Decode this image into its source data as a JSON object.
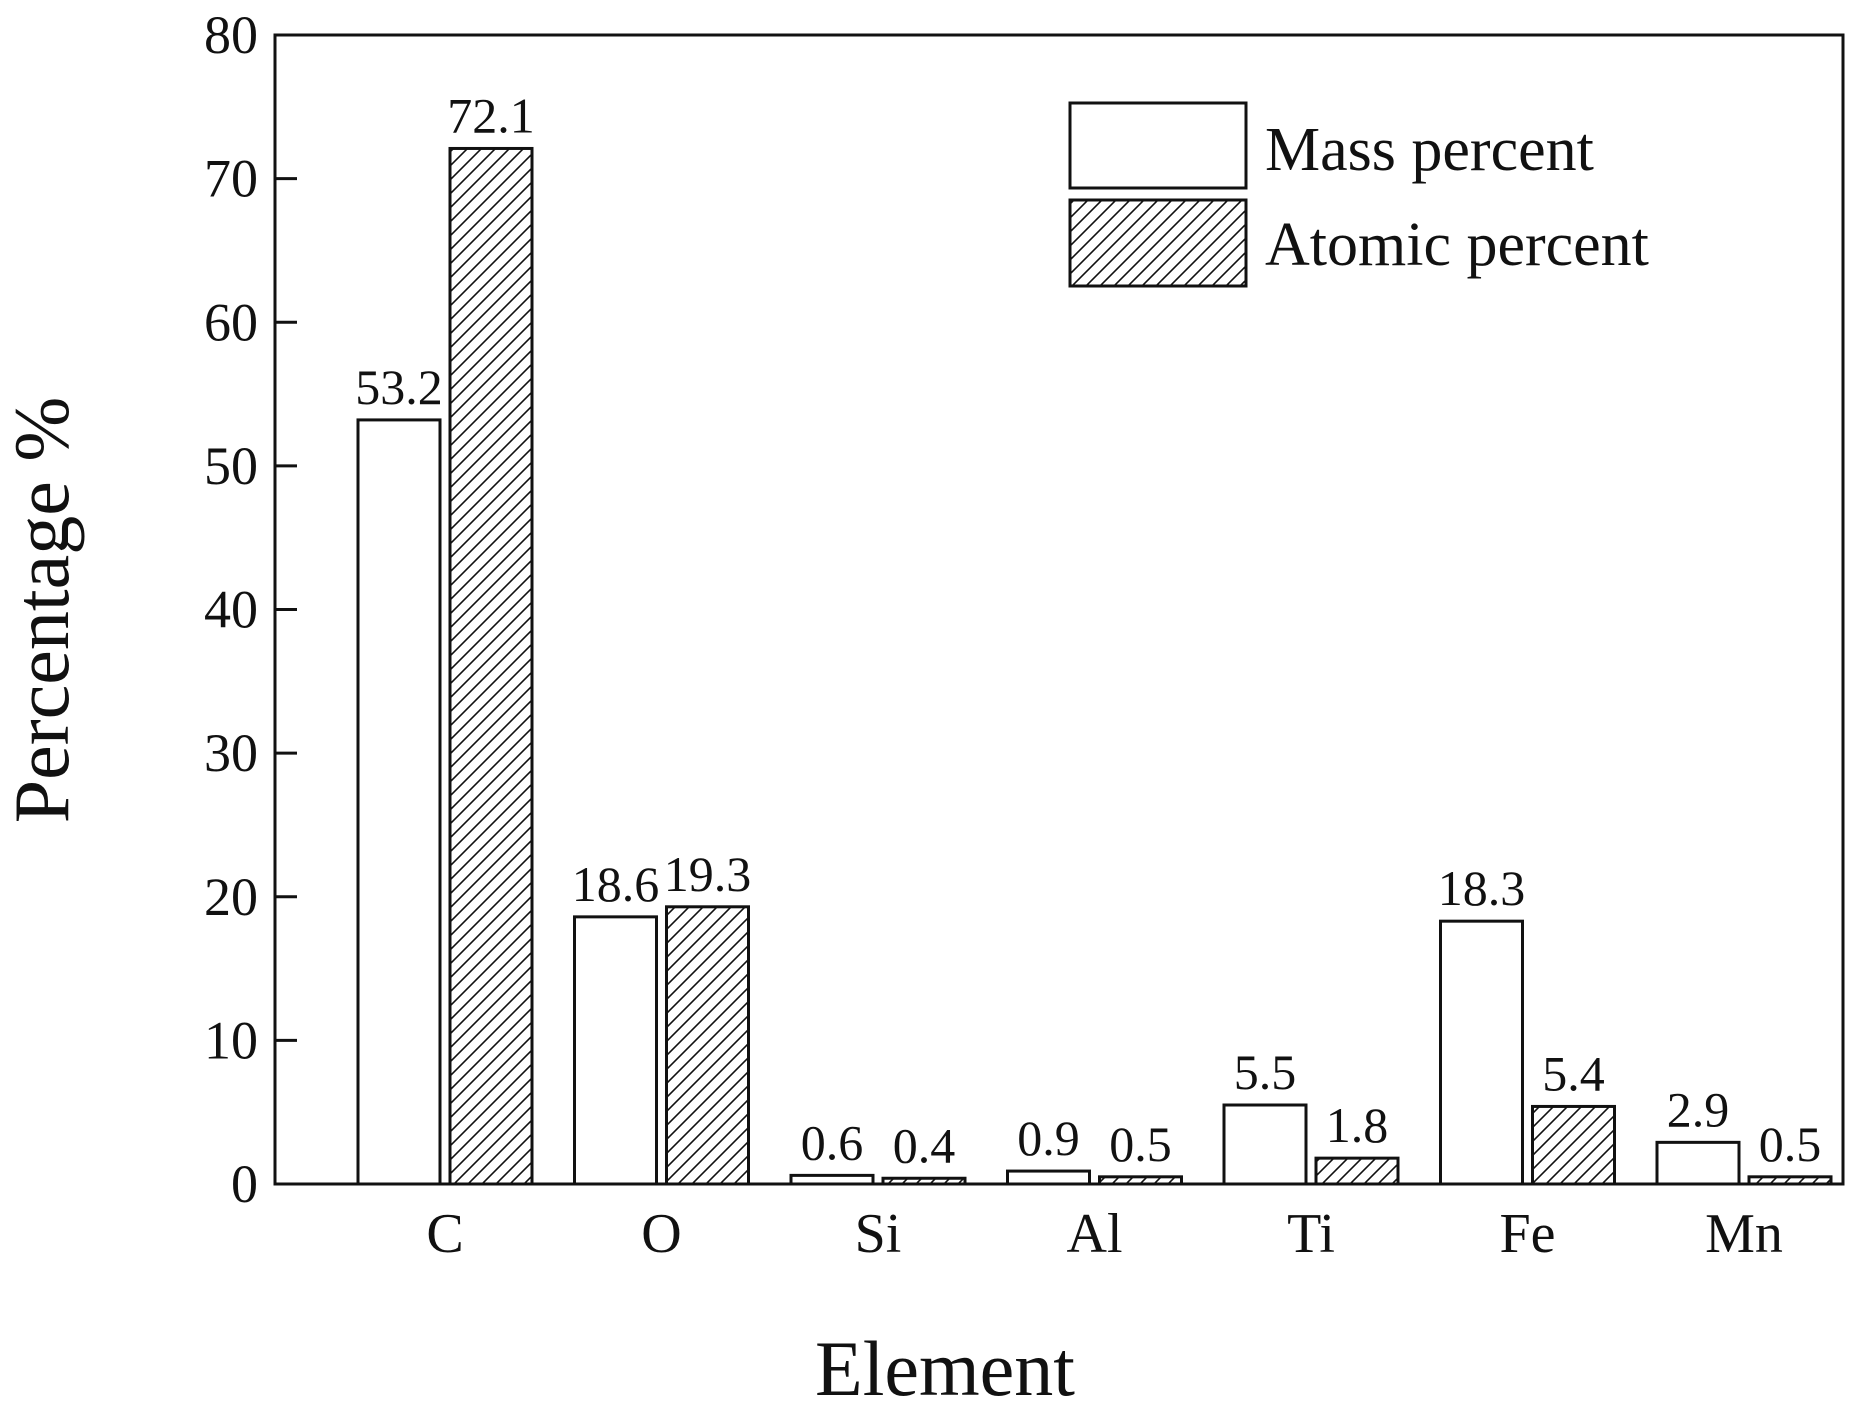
{
  "chart_data": {
    "type": "bar",
    "xlabel": "Element",
    "ylabel": "Percentage %",
    "categories": [
      "C",
      "O",
      "Si",
      "Al",
      "Ti",
      "Fe",
      "Mn"
    ],
    "ylim": [
      0,
      80
    ],
    "yticks": [
      "0",
      "10",
      "20",
      "30",
      "40",
      "50",
      "60",
      "70",
      "80"
    ],
    "series": [
      {
        "name": "Mass percent",
        "values": [
          53.2,
          18.6,
          0.6,
          0.9,
          5.5,
          18.3,
          2.9
        ],
        "labels": [
          "53.2",
          "18.6",
          "0.6",
          "0.9",
          "5.5",
          "18.3",
          "2.9"
        ],
        "fill": "white"
      },
      {
        "name": "Atomic percent",
        "values": [
          72.1,
          19.3,
          0.4,
          0.5,
          1.8,
          5.4,
          0.5
        ],
        "labels": [
          "72.1",
          "19.3",
          "0.4",
          "0.5",
          "1.8",
          "5.4",
          "0.5"
        ],
        "fill": "hatched"
      }
    ],
    "legend_position": "top-right",
    "grid": false,
    "colors": {
      "stroke": "#111111",
      "background": "#ffffff"
    }
  }
}
